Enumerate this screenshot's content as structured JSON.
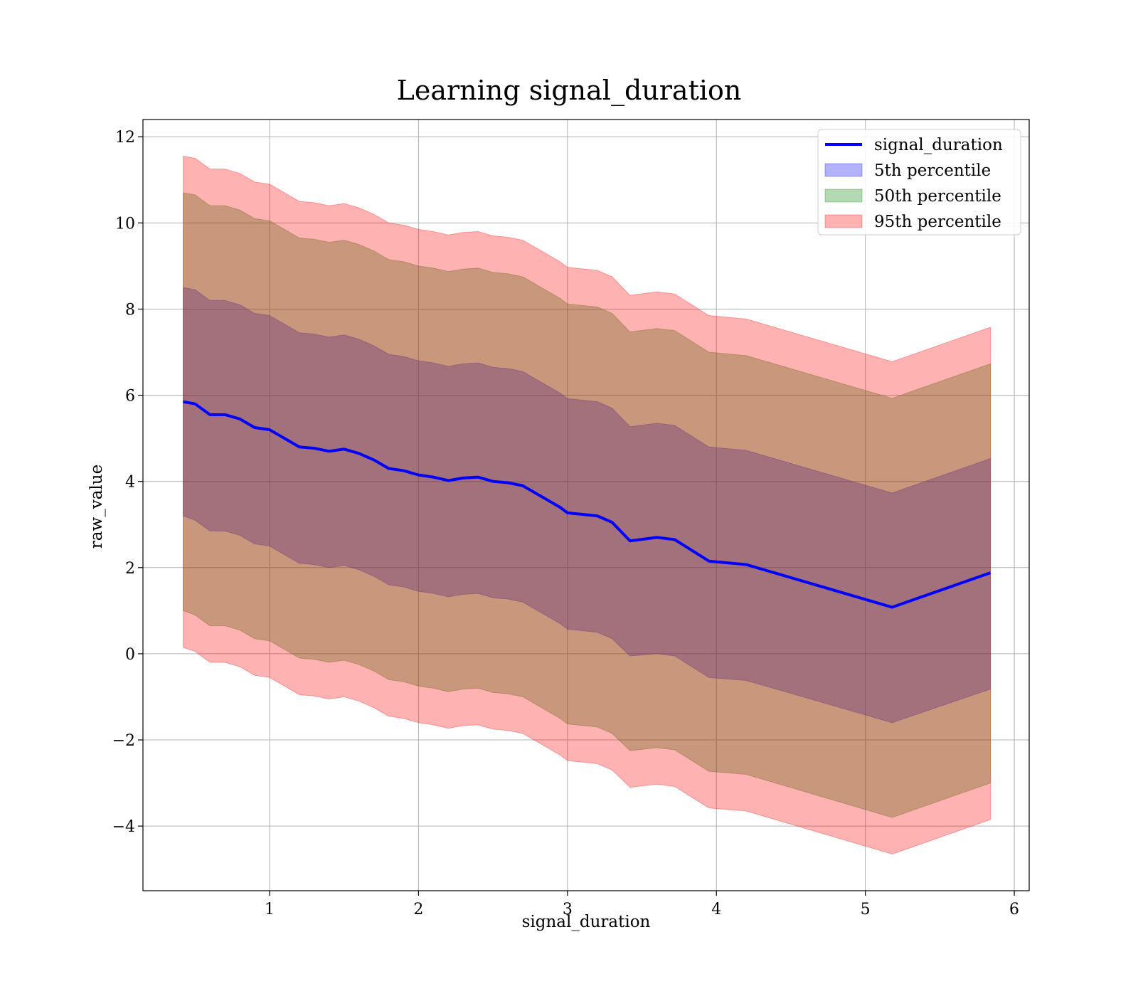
{
  "chart_data": {
    "type": "area",
    "title": "Learning signal_duration",
    "xlabel": "signal_duration",
    "ylabel": "raw_value",
    "xlim": [
      0.15,
      6.1
    ],
    "ylim": [
      -5.5,
      12.4
    ],
    "xticks": [
      1,
      2,
      3,
      4,
      5,
      6
    ],
    "xtick_labels": [
      "1",
      "2",
      "3",
      "4",
      "5",
      "6"
    ],
    "yticks": [
      -4,
      -2,
      0,
      2,
      4,
      6,
      8,
      10,
      12
    ],
    "ytick_labels": [
      "−4",
      "−2",
      "0",
      "2",
      "4",
      "6",
      "8",
      "10",
      "12"
    ],
    "grid": true,
    "legend_position": "top-right",
    "x": [
      0.42,
      0.5,
      0.6,
      0.7,
      0.8,
      0.9,
      1.0,
      1.1,
      1.2,
      1.3,
      1.4,
      1.5,
      1.6,
      1.7,
      1.8,
      1.9,
      2.0,
      2.1,
      2.2,
      2.3,
      2.4,
      2.5,
      2.6,
      2.7,
      2.85,
      2.95,
      3.0,
      3.2,
      3.3,
      3.42,
      3.6,
      3.72,
      3.95,
      4.2,
      5.18,
      5.84
    ],
    "series": [
      {
        "name": "signal_duration",
        "kind": "line",
        "color": "#0000ff",
        "values": [
          5.85,
          5.8,
          5.55,
          5.55,
          5.45,
          5.25,
          5.2,
          5.0,
          4.8,
          4.77,
          4.7,
          4.75,
          4.65,
          4.5,
          4.3,
          4.25,
          4.15,
          4.1,
          4.02,
          4.08,
          4.1,
          4.0,
          3.97,
          3.9,
          3.6,
          3.4,
          3.27,
          3.2,
          3.05,
          2.62,
          2.7,
          2.65,
          2.15,
          2.07,
          1.08,
          1.88
        ]
      },
      {
        "name": "5th percentile",
        "kind": "band",
        "color": "#0000ff",
        "lower": [
          3.2,
          3.1,
          2.85,
          2.85,
          2.75,
          2.55,
          2.5,
          2.3,
          2.1,
          2.07,
          2.0,
          2.05,
          1.95,
          1.8,
          1.6,
          1.55,
          1.45,
          1.4,
          1.32,
          1.38,
          1.4,
          1.3,
          1.27,
          1.2,
          0.9,
          0.7,
          0.57,
          0.5,
          0.35,
          -0.05,
          0.0,
          -0.05,
          -0.55,
          -0.62,
          -1.6,
          -0.82
        ],
        "upper": [
          8.5,
          8.45,
          8.2,
          8.2,
          8.1,
          7.9,
          7.85,
          7.65,
          7.45,
          7.42,
          7.35,
          7.4,
          7.3,
          7.15,
          6.95,
          6.9,
          6.8,
          6.75,
          6.67,
          6.73,
          6.75,
          6.65,
          6.62,
          6.55,
          6.25,
          6.05,
          5.92,
          5.85,
          5.7,
          5.27,
          5.35,
          5.3,
          4.8,
          4.72,
          3.73,
          4.53
        ]
      },
      {
        "name": "50th percentile",
        "kind": "band",
        "color": "#008000",
        "lower": [
          1.0,
          0.9,
          0.65,
          0.65,
          0.55,
          0.35,
          0.3,
          0.1,
          -0.1,
          -0.13,
          -0.2,
          -0.15,
          -0.25,
          -0.4,
          -0.6,
          -0.65,
          -0.75,
          -0.8,
          -0.88,
          -0.82,
          -0.8,
          -0.9,
          -0.93,
          -1.0,
          -1.3,
          -1.5,
          -1.63,
          -1.7,
          -1.85,
          -2.25,
          -2.18,
          -2.23,
          -2.73,
          -2.8,
          -3.8,
          -3.0
        ],
        "upper": [
          10.7,
          10.65,
          10.4,
          10.4,
          10.3,
          10.1,
          10.05,
          9.85,
          9.65,
          9.62,
          9.55,
          9.6,
          9.5,
          9.35,
          9.15,
          9.1,
          9.0,
          8.95,
          8.87,
          8.93,
          8.95,
          8.85,
          8.82,
          8.75,
          8.45,
          8.25,
          8.12,
          8.05,
          7.9,
          7.47,
          7.55,
          7.5,
          7.0,
          6.92,
          5.93,
          6.73
        ]
      },
      {
        "name": "95th percentile",
        "kind": "band",
        "color": "#ff0000",
        "lower": [
          0.15,
          0.05,
          -0.2,
          -0.2,
          -0.3,
          -0.5,
          -0.55,
          -0.75,
          -0.95,
          -0.98,
          -1.05,
          -1.0,
          -1.1,
          -1.25,
          -1.45,
          -1.5,
          -1.6,
          -1.65,
          -1.73,
          -1.67,
          -1.65,
          -1.75,
          -1.78,
          -1.85,
          -2.15,
          -2.35,
          -2.48,
          -2.55,
          -2.7,
          -3.1,
          -3.03,
          -3.08,
          -3.58,
          -3.65,
          -4.65,
          -3.85
        ],
        "upper": [
          11.55,
          11.5,
          11.25,
          11.25,
          11.15,
          10.95,
          10.9,
          10.7,
          10.5,
          10.47,
          10.4,
          10.45,
          10.35,
          10.2,
          10.0,
          9.95,
          9.85,
          9.8,
          9.72,
          9.78,
          9.8,
          9.7,
          9.67,
          9.6,
          9.3,
          9.1,
          8.97,
          8.9,
          8.75,
          8.32,
          8.4,
          8.35,
          7.85,
          7.77,
          6.78,
          7.58
        ]
      }
    ]
  },
  "legend": [
    {
      "label": "signal_duration",
      "kind": "line",
      "color": "#0000ff"
    },
    {
      "label": "5th percentile",
      "kind": "patch",
      "color": "#0000ff"
    },
    {
      "label": "50th percentile",
      "kind": "patch",
      "color": "#008000"
    },
    {
      "label": "95th percentile",
      "kind": "patch",
      "color": "#ff0000"
    }
  ]
}
